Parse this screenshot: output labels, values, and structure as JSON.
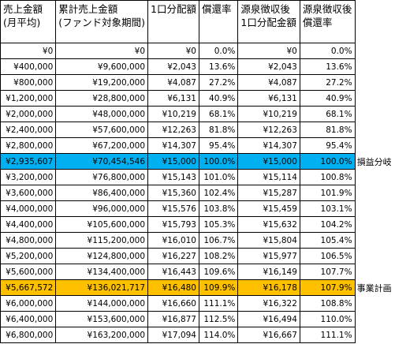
{
  "table": {
    "header": [
      [
        "売上金額",
        "(月平均)"
      ],
      [
        "累計売上金額",
        "(ファンド対象期間)"
      ],
      [
        "1口分配額"
      ],
      [
        "償還率"
      ],
      [
        "源泉徴収後",
        "1口分配金額"
      ],
      [
        "源泉徴収後",
        "償還率"
      ]
    ],
    "rows": [
      {
        "cells": [
          "¥0",
          "¥0",
          "¥0",
          "0.0%",
          "¥0",
          "0.0%"
        ]
      },
      {
        "cells": [
          "¥400,000",
          "¥9,600,000",
          "¥2,043",
          "13.6%",
          "¥2,043",
          "13.6%"
        ]
      },
      {
        "cells": [
          "¥800,000",
          "¥19,200,000",
          "¥4,087",
          "27.2%",
          "¥4,087",
          "27.2%"
        ]
      },
      {
        "cells": [
          "¥1,200,000",
          "¥28,800,000",
          "¥6,131",
          "40.9%",
          "¥6,131",
          "40.9%"
        ]
      },
      {
        "cells": [
          "¥2,000,000",
          "¥48,000,000",
          "¥10,219",
          "68.1%",
          "¥10,219",
          "68.1%"
        ]
      },
      {
        "cells": [
          "¥2,400,000",
          "¥57,600,000",
          "¥12,263",
          "81.8%",
          "¥12,263",
          "81.8%"
        ]
      },
      {
        "cells": [
          "¥2,800,000",
          "¥67,200,000",
          "¥14,307",
          "95.4%",
          "¥14,307",
          "95.4%"
        ]
      },
      {
        "cells": [
          "¥2,935,607",
          "¥70,454,546",
          "¥15,000",
          "100.0%",
          "¥15,000",
          "100.0%"
        ],
        "note": "損益分岐",
        "highlight": "#00b0f0"
      },
      {
        "cells": [
          "¥3,200,000",
          "¥76,800,000",
          "¥15,143",
          "101.0%",
          "¥15,114",
          "100.8%"
        ]
      },
      {
        "cells": [
          "¥3,600,000",
          "¥86,400,000",
          "¥15,360",
          "102.4%",
          "¥15,287",
          "101.9%"
        ]
      },
      {
        "cells": [
          "¥4,000,000",
          "¥96,000,000",
          "¥15,576",
          "103.8%",
          "¥15,459",
          "103.1%"
        ]
      },
      {
        "cells": [
          "¥4,400,000",
          "¥105,600,000",
          "¥15,793",
          "105.3%",
          "¥15,632",
          "104.2%"
        ]
      },
      {
        "cells": [
          "¥4,800,000",
          "¥115,200,000",
          "¥16,010",
          "106.7%",
          "¥15,804",
          "105.4%"
        ]
      },
      {
        "cells": [
          "¥5,200,000",
          "¥124,800,000",
          "¥16,227",
          "108.2%",
          "¥15,977",
          "106.5%"
        ]
      },
      {
        "cells": [
          "¥5,600,000",
          "¥134,400,000",
          "¥16,443",
          "109.6%",
          "¥16,149",
          "107.7%"
        ]
      },
      {
        "cells": [
          "¥5,667,572",
          "¥136,021,717",
          "¥16,480",
          "109.9%",
          "¥16,178",
          "107.9%"
        ],
        "note": "事業計画",
        "highlight": "#ffc000"
      },
      {
        "cells": [
          "¥6,000,000",
          "¥144,000,000",
          "¥16,660",
          "111.1%",
          "¥16,322",
          "108.8%"
        ]
      },
      {
        "cells": [
          "¥6,400,000",
          "¥153,600,000",
          "¥16,877",
          "112.5%",
          "¥16,494",
          "110.0%"
        ]
      },
      {
        "cells": [
          "¥6,800,000",
          "¥163,200,000",
          "¥17,094",
          "114.0%",
          "¥16,667",
          "111.1%"
        ]
      }
    ]
  }
}
